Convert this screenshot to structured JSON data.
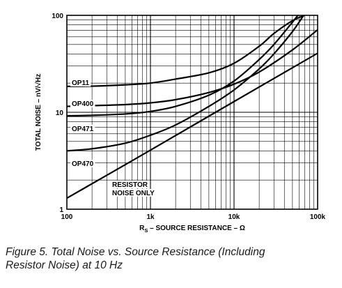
{
  "chart_data": {
    "type": "line",
    "x_scale": "log",
    "y_scale": "log",
    "xlim": [
      100,
      100000
    ],
    "ylim": [
      1,
      100
    ],
    "xlabel": "R_S – SOURCE RESISTANCE – Ω",
    "xlabel_main": "R",
    "xlabel_sub": "S",
    "xlabel_rest": " – SOURCE RESISTANCE – Ω",
    "ylabel": "TOTAL NOISE – nV/√Hz",
    "x_ticks": [
      {
        "value": 100,
        "label": "100"
      },
      {
        "value": 1000,
        "label": "1k"
      },
      {
        "value": 10000,
        "label": "10k"
      },
      {
        "value": 100000,
        "label": "100k"
      }
    ],
    "y_ticks": [
      {
        "value": 1,
        "label": "1"
      },
      {
        "value": 10,
        "label": "10"
      },
      {
        "value": 100,
        "label": "100"
      }
    ],
    "grid": true,
    "series": [
      {
        "name": "OP11",
        "x": [
          100,
          200,
          500,
          1000,
          2000,
          5000,
          10000,
          20000,
          30000,
          50000,
          70000
        ],
        "y": [
          18.5,
          18.6,
          19.2,
          20.0,
          22.0,
          25.5,
          32.0,
          48.0,
          65.0,
          88.0,
          100.0
        ]
      },
      {
        "name": "OP400",
        "x": [
          100,
          200,
          500,
          1000,
          2000,
          5000,
          10000,
          20000,
          50000,
          100000
        ],
        "y": [
          11.5,
          11.7,
          12.0,
          12.5,
          13.5,
          16.0,
          19.5,
          26.0,
          44.0,
          71.0
        ]
      },
      {
        "name": "OP471",
        "x": [
          100,
          200,
          500,
          1000,
          2000,
          5000,
          10000,
          20000,
          30000,
          50000,
          58000
        ],
        "y": [
          9.2,
          9.3,
          9.6,
          10.2,
          11.5,
          15.0,
          21.0,
          35.0,
          50.0,
          85.0,
          100.0
        ]
      },
      {
        "name": "OP470",
        "x": [
          100,
          200,
          500,
          1000,
          2000,
          5000,
          10000,
          20000,
          30000,
          50000,
          68000
        ],
        "y": [
          4.0,
          4.2,
          4.8,
          5.8,
          7.4,
          11.5,
          17.0,
          28.0,
          40.0,
          68.0,
          100.0
        ]
      },
      {
        "name": "RESISTOR NOISE ONLY",
        "label_lines": [
          "RESISTOR",
          "NOISE ONLY"
        ],
        "x": [
          100,
          1000,
          10000,
          100000
        ],
        "y": [
          1.3,
          4.07,
          12.9,
          40.7
        ]
      }
    ]
  },
  "caption": {
    "line1": "Figure 5.  Total Noise vs. Source Resistance (Including",
    "line2": "Resistor Noise) at 10 Hz"
  }
}
